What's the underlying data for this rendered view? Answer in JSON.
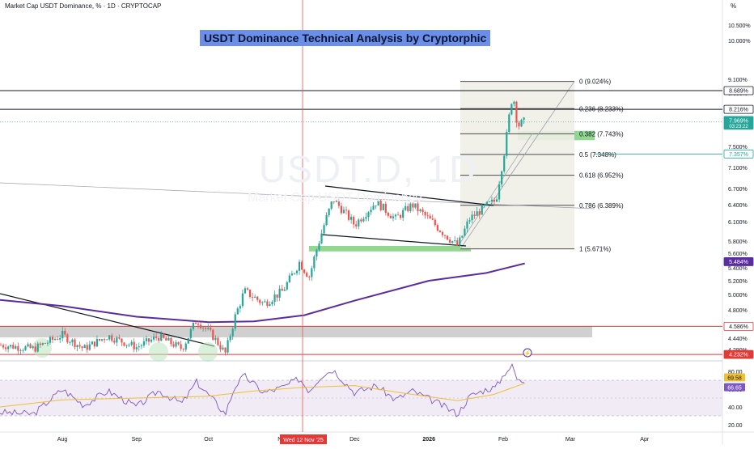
{
  "header": {
    "symbol_line": "Market Cap USDT Dominance, % · 1D · CRYPTOCAP",
    "percent_button": "%"
  },
  "watermark": {
    "ticker": "USDT.D, 1D",
    "sub": "Market Cap USDT Dominance"
  },
  "colors": {
    "up": "#26a69a",
    "down": "#ef5350",
    "ma": "#5b2ca0",
    "rsi": "#7e57c2",
    "rsi_ma": "#f0c030",
    "support_zone": "#7ed07e",
    "resistance_zone": "#c8c8c8",
    "fib_bg": "#efefe8",
    "title_bg": "#6b8ee8"
  },
  "chart_data": {
    "type": "candlestick",
    "title": "USDT Dominance Technical Analysis by Cryptorphic",
    "y_axis_ticks": [
      "10.500%",
      "10.000%",
      "9.100%",
      "8.600%",
      "8.200%",
      "7.500%",
      "7.100%",
      "6.700%",
      "6.400%",
      "6.100%",
      "5.800%",
      "5.600%",
      "5.400%",
      "5.200%",
      "5.000%",
      "4.800%",
      "4.600%",
      "4.440%",
      "4.290%"
    ],
    "price_labels": [
      {
        "text": "8.689%",
        "style": "dark-outline"
      },
      {
        "text": "8.216%",
        "style": "dark-outline"
      },
      {
        "text": "7.969%",
        "sub": "03:23:22",
        "style": "green"
      },
      {
        "text": "7.357%",
        "style": "teal-outline"
      },
      {
        "text": "5.484%",
        "style": "purple"
      },
      {
        "text": "4.586%",
        "style": "red-outline"
      },
      {
        "text": "4.232%",
        "style": "red"
      }
    ],
    "x_axis_labels": [
      "Aug",
      "Sep",
      "Oct",
      "Nov",
      "Dec",
      "2026",
      "Feb",
      "Mar",
      "Apr"
    ],
    "crosshair_date": "Wed 12 Nov '25",
    "fibonacci": [
      {
        "ratio": "0",
        "price": "9.024%"
      },
      {
        "ratio": "0.236",
        "price": "8.233%"
      },
      {
        "ratio": "0.382",
        "price": "7.743%"
      },
      {
        "ratio": "0.5",
        "price": "7.348%"
      },
      {
        "ratio": "0.618",
        "price": "6.952%"
      },
      {
        "ratio": "0.786",
        "price": "6.389%"
      },
      {
        "ratio": "1",
        "price": "5.671%"
      }
    ],
    "horizontal_levels": [
      8.689,
      8.216,
      7.357,
      4.586,
      4.232
    ],
    "ma_series": [
      {
        "date": "2025-07-06",
        "value": 4.93
      },
      {
        "date": "2025-08-01",
        "value": 4.85
      },
      {
        "date": "2025-09-01",
        "value": 4.71
      },
      {
        "date": "2025-10-01",
        "value": 4.64
      },
      {
        "date": "2025-10-20",
        "value": 4.65
      },
      {
        "date": "2025-11-10",
        "value": 4.73
      },
      {
        "date": "2025-12-01",
        "value": 4.92
      },
      {
        "date": "2026-01-01",
        "value": 5.2
      },
      {
        "date": "2026-01-25",
        "value": 5.32
      },
      {
        "date": "2026-02-10",
        "value": 5.46
      }
    ],
    "price_path": [
      {
        "date": "2025-07-06",
        "value": 4.35
      },
      {
        "date": "2025-07-20",
        "value": 4.3
      },
      {
        "date": "2025-08-01",
        "value": 4.48
      },
      {
        "date": "2025-08-10",
        "value": 4.3
      },
      {
        "date": "2025-08-20",
        "value": 4.47
      },
      {
        "date": "2025-09-01",
        "value": 4.32
      },
      {
        "date": "2025-09-10",
        "value": 4.46
      },
      {
        "date": "2025-09-20",
        "value": 4.3
      },
      {
        "date": "2025-09-26",
        "value": 4.67
      },
      {
        "date": "2025-10-03",
        "value": 4.46
      },
      {
        "date": "2025-10-08",
        "value": 4.24
      },
      {
        "date": "2025-10-12",
        "value": 4.7
      },
      {
        "date": "2025-10-16",
        "value": 5.05
      },
      {
        "date": "2025-10-24",
        "value": 4.88
      },
      {
        "date": "2025-11-01",
        "value": 5.05
      },
      {
        "date": "2025-11-08",
        "value": 5.48
      },
      {
        "date": "2025-11-12",
        "value": 5.26
      },
      {
        "date": "2025-11-17",
        "value": 5.9
      },
      {
        "date": "2025-11-22",
        "value": 6.5
      },
      {
        "date": "2025-12-01",
        "value": 6.05
      },
      {
        "date": "2025-12-10",
        "value": 6.45
      },
      {
        "date": "2025-12-18",
        "value": 6.15
      },
      {
        "date": "2025-12-25",
        "value": 6.4
      },
      {
        "date": "2026-01-05",
        "value": 6.0
      },
      {
        "date": "2026-01-13",
        "value": 5.72
      },
      {
        "date": "2026-01-18",
        "value": 6.15
      },
      {
        "date": "2026-01-25",
        "value": 6.38
      },
      {
        "date": "2026-01-29",
        "value": 6.48
      },
      {
        "date": "2026-02-02",
        "value": 7.55
      },
      {
        "date": "2026-02-05",
        "value": 8.6
      },
      {
        "date": "2026-02-07",
        "value": 7.9
      },
      {
        "date": "2026-02-10",
        "value": 7.97
      }
    ],
    "rsi": {
      "ticks": [
        "80.00",
        "60.00",
        "40.00",
        "20.00"
      ],
      "value_labels": [
        "69.58",
        "66.65"
      ],
      "band_upper": 70,
      "band_lower": 30,
      "path": [
        {
          "date": "2025-07-06",
          "value": 34
        },
        {
          "date": "2025-07-20",
          "value": 32
        },
        {
          "date": "2025-08-01",
          "value": 60
        },
        {
          "date": "2025-08-10",
          "value": 42
        },
        {
          "date": "2025-08-20",
          "value": 58
        },
        {
          "date": "2025-09-01",
          "value": 40
        },
        {
          "date": "2025-09-10",
          "value": 58
        },
        {
          "date": "2025-09-20",
          "value": 44
        },
        {
          "date": "2025-09-26",
          "value": 68
        },
        {
          "date": "2025-10-03",
          "value": 48
        },
        {
          "date": "2025-10-08",
          "value": 32
        },
        {
          "date": "2025-10-12",
          "value": 63
        },
        {
          "date": "2025-10-16",
          "value": 75
        },
        {
          "date": "2025-10-24",
          "value": 56
        },
        {
          "date": "2025-11-01",
          "value": 62
        },
        {
          "date": "2025-11-08",
          "value": 72
        },
        {
          "date": "2025-11-12",
          "value": 58
        },
        {
          "date": "2025-11-17",
          "value": 75
        },
        {
          "date": "2025-11-22",
          "value": 82
        },
        {
          "date": "2025-12-01",
          "value": 56
        },
        {
          "date": "2025-12-10",
          "value": 64
        },
        {
          "date": "2025-12-18",
          "value": 48
        },
        {
          "date": "2025-12-25",
          "value": 58
        },
        {
          "date": "2026-01-05",
          "value": 44
        },
        {
          "date": "2026-01-13",
          "value": 32
        },
        {
          "date": "2026-01-18",
          "value": 52
        },
        {
          "date": "2026-01-25",
          "value": 60
        },
        {
          "date": "2026-01-29",
          "value": 62
        },
        {
          "date": "2026-02-02",
          "value": 80
        },
        {
          "date": "2026-02-05",
          "value": 86
        },
        {
          "date": "2026-02-07",
          "value": 69
        },
        {
          "date": "2026-02-10",
          "value": 69.58
        }
      ],
      "ma_path": [
        {
          "date": "2025-07-06",
          "value": 40
        },
        {
          "date": "2025-08-01",
          "value": 48
        },
        {
          "date": "2025-09-01",
          "value": 50
        },
        {
          "date": "2025-10-01",
          "value": 52
        },
        {
          "date": "2025-10-20",
          "value": 58
        },
        {
          "date": "2025-11-10",
          "value": 62
        },
        {
          "date": "2025-12-01",
          "value": 64
        },
        {
          "date": "2025-12-20",
          "value": 56
        },
        {
          "date": "2026-01-13",
          "value": 47
        },
        {
          "date": "2026-01-28",
          "value": 54
        },
        {
          "date": "2026-02-10",
          "value": 66.65
        }
      ]
    }
  }
}
